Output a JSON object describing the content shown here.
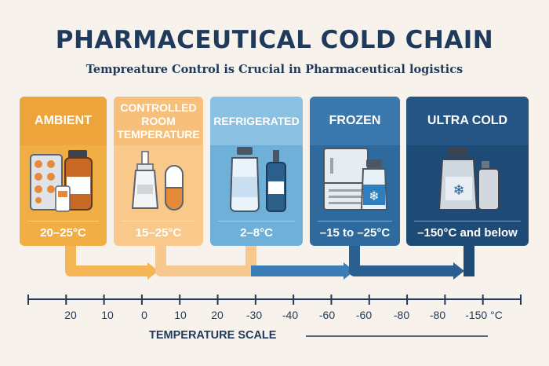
{
  "title": "PHARMACEUTICAL COLD CHAIN",
  "subtitle": "Tempreature Control is Crucial in Pharmaceutical logistics",
  "colors": {
    "ambient": "#f0ae45",
    "controlled": "#f8c98a",
    "refrigerated": "#6fb0d8",
    "frozen": "#2f6a9e",
    "ultra_cold": "#1e4a76",
    "text_dark": "#1f3a5b",
    "background": "#f7f3ec"
  },
  "panels": [
    {
      "title_lines": [
        "AMBIENT"
      ],
      "range": "20–25°C"
    },
    {
      "title_lines": [
        "CONTROLLED",
        "ROOM",
        "TEMPERATURE"
      ],
      "range": "15–25°C"
    },
    {
      "title_lines": [
        "REFRIGERATED"
      ],
      "range": "2–8°C"
    },
    {
      "title_lines": [
        "FROZEN"
      ],
      "range": "–15 to –25°C"
    },
    {
      "title_lines": [
        "ULTRA COLD"
      ],
      "range": "–150°C and below"
    }
  ],
  "scale": {
    "ticks": [
      "20",
      "10",
      "0",
      "10",
      "20",
      "-30",
      "-40",
      "-60",
      "-60",
      "-80",
      "-80",
      "-150 °C"
    ],
    "label": "TEMPERATURE SCALE"
  }
}
